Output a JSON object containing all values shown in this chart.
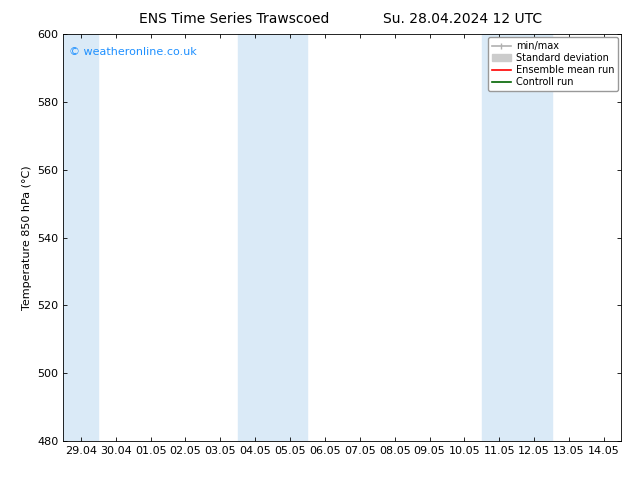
{
  "title_left": "ENS Time Series Trawscoed",
  "title_right": "Su. 28.04.2024 12 UTC",
  "ylabel": "Temperature 850 hPa (°C)",
  "ylim": [
    480,
    600
  ],
  "yticks": [
    480,
    500,
    520,
    540,
    560,
    580,
    600
  ],
  "xtick_labels": [
    "29.04",
    "30.04",
    "01.05",
    "02.05",
    "03.05",
    "04.05",
    "05.05",
    "06.05",
    "07.05",
    "08.05",
    "09.05",
    "10.05",
    "11.05",
    "12.05",
    "13.05",
    "14.05"
  ],
  "xtick_positions": [
    0,
    1,
    2,
    3,
    4,
    5,
    6,
    7,
    8,
    9,
    10,
    11,
    12,
    13,
    14,
    15
  ],
  "shaded_bands": [
    {
      "x_start": -0.5,
      "x_end": 0.5,
      "color": "#daeaf7"
    },
    {
      "x_start": 4.5,
      "x_end": 6.5,
      "color": "#daeaf7"
    },
    {
      "x_start": 11.5,
      "x_end": 13.5,
      "color": "#daeaf7"
    }
  ],
  "watermark_text": "© weatheronline.co.uk",
  "watermark_color": "#1e90ff",
  "background_color": "#ffffff",
  "legend_entries": [
    {
      "label": "min/max",
      "color": "#b0b0b0",
      "lw": 1.2
    },
    {
      "label": "Standard deviation",
      "color": "#cccccc",
      "lw": 5
    },
    {
      "label": "Ensemble mean run",
      "color": "#ff0000",
      "lw": 1.2
    },
    {
      "label": "Controll run",
      "color": "#006400",
      "lw": 1.2
    }
  ],
  "border_color": "#000000",
  "font_size_title": 10,
  "font_size_axis_label": 8,
  "font_size_tick": 8,
  "font_size_watermark": 8,
  "font_size_legend": 7,
  "xlim": [
    -0.5,
    15.5
  ]
}
